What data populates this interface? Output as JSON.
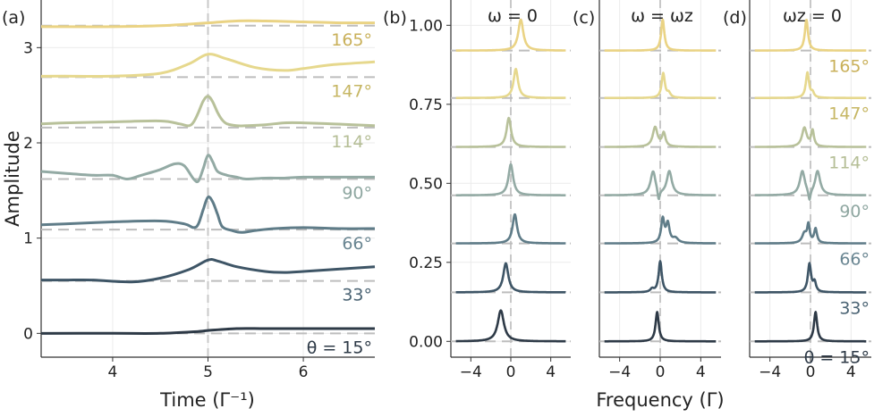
{
  "chart_data": [
    {
      "type": "line",
      "panel": "(a)",
      "title": "",
      "xlabel": "Time (Γ⁻¹)",
      "ylabel": "Amplitude",
      "xlim": [
        3.25,
        6.75
      ],
      "ylim": [
        -0.25,
        3.5
      ],
      "xticks": [
        4,
        5,
        6
      ],
      "yticks": [
        0,
        1,
        2,
        3
      ],
      "grid": true,
      "vline": 5,
      "series": [
        {
          "name": "θ = 15°",
          "offset": 0.0,
          "color": "#2e3a47",
          "x": [
            3.25,
            4.0,
            4.5,
            4.9,
            5.0,
            5.3,
            5.6,
            6.0,
            6.5,
            6.75
          ],
          "y": [
            0.0,
            0.0,
            0.0,
            0.02,
            0.03,
            0.05,
            0.05,
            0.05,
            0.05,
            0.05
          ]
        },
        {
          "name": "33°",
          "offset": 0.55,
          "color": "#3e5566",
          "x": [
            3.25,
            3.5,
            3.8,
            4.2,
            4.5,
            4.8,
            5.0,
            5.1,
            5.3,
            5.6,
            5.8,
            6.0,
            6.3,
            6.75
          ],
          "y": [
            0.56,
            0.56,
            0.56,
            0.54,
            0.58,
            0.67,
            0.77,
            0.76,
            0.7,
            0.65,
            0.64,
            0.65,
            0.67,
            0.7
          ]
        },
        {
          "name": "66°",
          "offset": 1.09,
          "color": "#5f7c88",
          "x": [
            3.25,
            3.5,
            4.0,
            4.5,
            4.75,
            4.85,
            4.9,
            4.95,
            5.0,
            5.05,
            5.1,
            5.15,
            5.25,
            5.35,
            5.5,
            5.7,
            6.0,
            6.4,
            6.75
          ],
          "y": [
            1.14,
            1.15,
            1.17,
            1.18,
            1.15,
            1.11,
            1.15,
            1.3,
            1.43,
            1.38,
            1.25,
            1.12,
            1.08,
            1.06,
            1.08,
            1.1,
            1.11,
            1.1,
            1.1
          ]
        },
        {
          "name": "90°",
          "offset": 1.62,
          "color": "#93aaa4",
          "x": [
            3.25,
            3.5,
            3.8,
            4.0,
            4.15,
            4.3,
            4.5,
            4.65,
            4.75,
            4.85,
            4.9,
            4.95,
            5.0,
            5.05,
            5.1,
            5.2,
            5.3,
            5.4,
            5.6,
            5.8,
            6.0,
            6.4,
            6.75
          ],
          "y": [
            1.7,
            1.68,
            1.66,
            1.66,
            1.62,
            1.66,
            1.72,
            1.78,
            1.76,
            1.62,
            1.6,
            1.73,
            1.87,
            1.8,
            1.7,
            1.66,
            1.64,
            1.62,
            1.63,
            1.63,
            1.64,
            1.64,
            1.64
          ]
        },
        {
          "name": "114°",
          "offset": 2.16,
          "color": "#b8c19a",
          "x": [
            3.25,
            3.5,
            4.0,
            4.5,
            4.7,
            4.8,
            4.85,
            4.9,
            4.95,
            5.0,
            5.05,
            5.1,
            5.15,
            5.2,
            5.3,
            5.4,
            5.6,
            5.8,
            6.0,
            6.3,
            6.75
          ],
          "y": [
            2.2,
            2.21,
            2.22,
            2.23,
            2.2,
            2.18,
            2.22,
            2.32,
            2.44,
            2.49,
            2.43,
            2.32,
            2.24,
            2.2,
            2.18,
            2.18,
            2.19,
            2.21,
            2.21,
            2.2,
            2.18
          ]
        },
        {
          "name": "147°",
          "offset": 2.69,
          "color": "#e6d88d",
          "x": [
            3.25,
            3.5,
            4.0,
            4.5,
            4.8,
            5.0,
            5.2,
            5.5,
            5.8,
            6.0,
            6.3,
            6.75
          ],
          "y": [
            2.7,
            2.7,
            2.7,
            2.73,
            2.83,
            2.93,
            2.88,
            2.79,
            2.76,
            2.78,
            2.82,
            2.85
          ]
        },
        {
          "name": "165°",
          "offset": 3.23,
          "color": "#ead384",
          "x": [
            3.25,
            3.5,
            4.0,
            4.5,
            5.0,
            5.3,
            5.6,
            6.0,
            6.4,
            6.75
          ],
          "y": [
            3.22,
            3.22,
            3.22,
            3.23,
            3.26,
            3.28,
            3.28,
            3.27,
            3.26,
            3.26
          ]
        }
      ]
    },
    {
      "type": "line",
      "panel": "(b)",
      "title": "ω = 0",
      "xlim": [
        -6,
        6
      ],
      "ylim": [
        -0.05,
        1.08
      ],
      "xticks": [
        -4,
        0,
        4
      ],
      "yticks": [
        0.0,
        0.25,
        0.5,
        0.75,
        1.0
      ],
      "ytick_labels": [
        "0.00",
        "0.25",
        "0.50",
        "0.75",
        "1.00"
      ],
      "grid": true,
      "vline": 0,
      "series": [
        {
          "offset": 0.0,
          "peaks": [
            {
              "c": -1.0,
              "a": 0.098,
              "w": 0.55
            }
          ]
        },
        {
          "offset": 0.155,
          "peaks": [
            {
              "c": -0.5,
              "a": 0.092,
              "w": 0.45
            }
          ]
        },
        {
          "offset": 0.31,
          "peaks": [
            {
              "c": 0.4,
              "a": 0.092,
              "w": 0.4
            }
          ]
        },
        {
          "offset": 0.462,
          "peaks": [
            {
              "c": 0.0,
              "a": 0.098,
              "w": 0.42
            }
          ]
        },
        {
          "offset": 0.615,
          "peaks": [
            {
              "c": -0.2,
              "a": 0.092,
              "w": 0.4
            }
          ]
        },
        {
          "offset": 0.77,
          "peaks": [
            {
              "c": 0.5,
              "a": 0.092,
              "w": 0.4
            }
          ]
        },
        {
          "offset": 0.92,
          "peaks": [
            {
              "c": 1.0,
              "a": 0.098,
              "w": 0.45
            }
          ]
        }
      ]
    },
    {
      "type": "line",
      "panel": "(c)",
      "title": "ω = ωz",
      "xlabel": "Frequency (Γ)",
      "xlim": [
        -6,
        6
      ],
      "ylim": [
        -0.05,
        1.08
      ],
      "xticks": [
        -4,
        0,
        4
      ],
      "grid": true,
      "vline": 0,
      "series": [
        {
          "offset": 0.0,
          "peaks": [
            {
              "c": -0.3,
              "a": 0.093,
              "w": 0.28
            }
          ]
        },
        {
          "offset": 0.155,
          "peaks": [
            {
              "c": 0.0,
              "a": 0.098,
              "w": 0.28
            },
            {
              "c": -0.8,
              "a": 0.01,
              "w": 0.3
            }
          ]
        },
        {
          "offset": 0.31,
          "peaks": [
            {
              "c": 0.25,
              "a": 0.075,
              "w": 0.28
            },
            {
              "c": 0.75,
              "a": 0.06,
              "w": 0.3
            },
            {
              "c": 1.5,
              "a": 0.015,
              "w": 0.5
            }
          ]
        },
        {
          "offset": 0.462,
          "peaks": [
            {
              "c": -0.7,
              "a": 0.075,
              "w": 0.45
            },
            {
              "c": 0.9,
              "a": 0.075,
              "w": 0.45
            },
            {
              "c": -0.15,
              "a": -0.035,
              "w": 0.18
            }
          ]
        },
        {
          "offset": 0.615,
          "peaks": [
            {
              "c": -0.5,
              "a": 0.062,
              "w": 0.42
            },
            {
              "c": 0.35,
              "a": 0.042,
              "w": 0.3
            }
          ]
        },
        {
          "offset": 0.77,
          "peaks": [
            {
              "c": 0.3,
              "a": 0.078,
              "w": 0.28
            },
            {
              "c": 0.85,
              "a": 0.014,
              "w": 0.3
            }
          ]
        },
        {
          "offset": 0.92,
          "peaks": [
            {
              "c": 0.25,
              "a": 0.098,
              "w": 0.28
            }
          ]
        }
      ]
    },
    {
      "type": "line",
      "panel": "(d)",
      "title": "ωz = 0",
      "xlim": [
        -6,
        6
      ],
      "ylim": [
        -0.05,
        1.08
      ],
      "xticks": [
        -4,
        0,
        4
      ],
      "grid": true,
      "vline": 0,
      "series": [
        {
          "name": "θ = 15°",
          "offset": 0.0,
          "color": "#2e3a47",
          "peaks": [
            {
              "c": 0.5,
              "a": 0.093,
              "w": 0.28
            }
          ]
        },
        {
          "name": "33°",
          "offset": 0.155,
          "color": "#3e5566",
          "peaks": [
            {
              "c": -0.1,
              "a": 0.09,
              "w": 0.28
            },
            {
              "c": 0.4,
              "a": 0.03,
              "w": 0.25
            }
          ]
        },
        {
          "name": "66°",
          "offset": 0.31,
          "color": "#5f7c88",
          "peaks": [
            {
              "c": -0.6,
              "a": 0.03,
              "w": 0.4
            },
            {
              "c": -0.2,
              "a": 0.055,
              "w": 0.22
            },
            {
              "c": 0.5,
              "a": 0.045,
              "w": 0.25
            }
          ]
        },
        {
          "name": "90°",
          "offset": 0.462,
          "color": "#93aaa4",
          "peaks": [
            {
              "c": -0.8,
              "a": 0.075,
              "w": 0.45
            },
            {
              "c": 0.7,
              "a": 0.075,
              "w": 0.45
            },
            {
              "c": -0.1,
              "a": -0.035,
              "w": 0.18
            }
          ]
        },
        {
          "name": "114°",
          "offset": 0.615,
          "color": "#b8c19a",
          "peaks": [
            {
              "c": -0.6,
              "a": 0.06,
              "w": 0.42
            },
            {
              "c": 0.2,
              "a": 0.05,
              "w": 0.25
            }
          ]
        },
        {
          "name": "147°",
          "offset": 0.77,
          "color": "#e6d88d",
          "peaks": [
            {
              "c": -0.3,
              "a": 0.08,
              "w": 0.28
            },
            {
              "c": 0.2,
              "a": 0.015,
              "w": 0.25
            }
          ]
        },
        {
          "name": "165°",
          "offset": 0.92,
          "color": "#ead384",
          "peaks": [
            {
              "c": -0.4,
              "a": 0.098,
              "w": 0.28
            }
          ]
        }
      ]
    }
  ],
  "label_colors": [
    "#2e3a47",
    "#4a6373",
    "#6a8692",
    "#8fa7a1",
    "#b5be96",
    "#c6b663",
    "#c9b05a"
  ]
}
